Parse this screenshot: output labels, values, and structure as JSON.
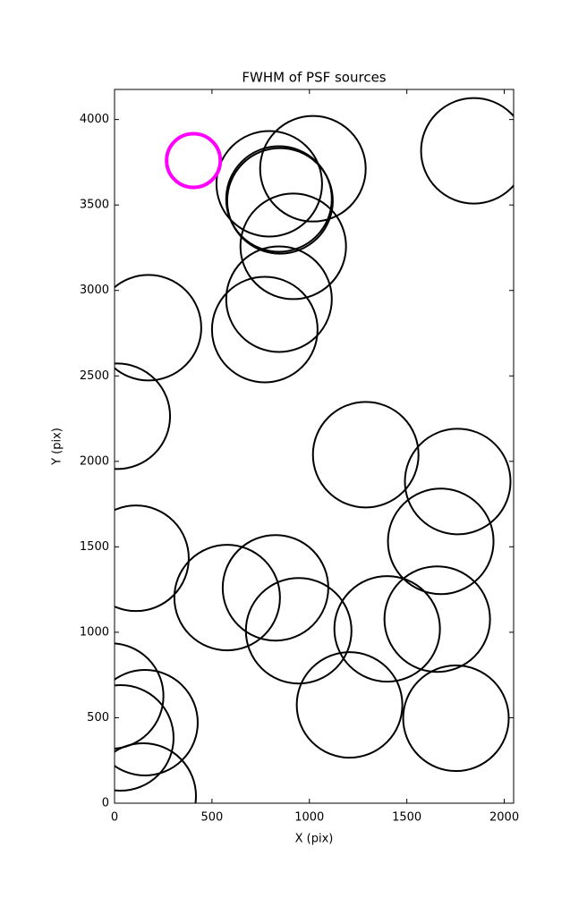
{
  "chart_data": {
    "type": "scatter",
    "title": "FWHM of PSF sources",
    "x_label": "X (pix)",
    "y_label": "Y (pix)",
    "xlim": [
      0,
      2048
    ],
    "ylim": [
      0,
      4176
    ],
    "xticks": [
      0,
      500,
      1000,
      1500,
      2000
    ],
    "yticks": [
      0,
      500,
      1000,
      1500,
      2000,
      2500,
      3000,
      3500,
      4000
    ],
    "series": [
      {
        "color": "#000000",
        "x": [
          1018,
          794,
          844,
          849,
          1844,
          917,
          844,
          771,
          174,
          14,
          1289,
          1761,
          1674,
          110,
          578,
          826,
          945,
          1399,
          1656,
          1206,
          1752,
          -20,
          156,
          32,
          147
        ],
        "values": [
          3712,
          3624,
          3535,
          3524,
          3817,
          3258,
          2949,
          2771,
          2782,
          2264,
          2039,
          1882,
          1532,
          1433,
          1203,
          1260,
          1009,
          1020,
          1077,
          575,
          497,
          627,
          471,
          382,
          42
        ]
      },
      {
        "color": "#ff00ff",
        "x": [
          405
        ],
        "values": [
          3760
        ]
      }
    ]
  }
}
